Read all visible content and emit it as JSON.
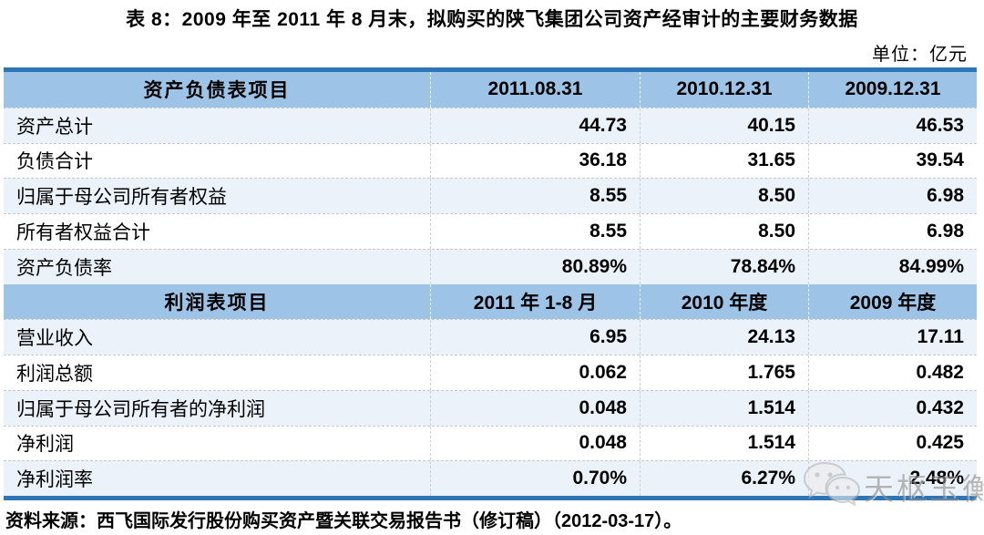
{
  "title": "表 8：2009 年至 2011 年 8 月末，拟购买的陕飞集团公司资产经审计的主要财务数据",
  "unit_label": "单位：亿元",
  "colors": {
    "header_bg": "#9DC3E6",
    "border_blue": "#2E75B6",
    "row_alt_bg": "#EBF2FA",
    "watermark_gray": "#8d8d8d"
  },
  "table": {
    "sections": [
      {
        "header": {
          "label": "资产负债表项目",
          "cols": [
            "2011.08.31",
            "2010.12.31",
            "2009.12.31"
          ]
        },
        "rows": [
          {
            "label": "资产总计",
            "values": [
              "44.73",
              "40.15",
              "46.53"
            ]
          },
          {
            "label": "负债合计",
            "values": [
              "36.18",
              "31.65",
              "39.54"
            ]
          },
          {
            "label": "归属于母公司所有者权益",
            "values": [
              "8.55",
              "8.50",
              "6.98"
            ]
          },
          {
            "label": "所有者权益合计",
            "values": [
              "8.55",
              "8.50",
              "6.98"
            ]
          },
          {
            "label": "资产负债率",
            "values": [
              "80.89%",
              "78.84%",
              "84.99%"
            ]
          }
        ]
      },
      {
        "header": {
          "label": "利润表项目",
          "cols": [
            "2011 年 1-8 月",
            "2010 年度",
            "2009 年度"
          ]
        },
        "rows": [
          {
            "label": "营业收入",
            "values": [
              "6.95",
              "24.13",
              "17.11"
            ]
          },
          {
            "label": "利润总额",
            "values": [
              "0.062",
              "1.765",
              "0.482"
            ]
          },
          {
            "label": "归属于母公司所有者的净利润",
            "values": [
              "0.048",
              "1.514",
              "0.432"
            ]
          },
          {
            "label": "净利润",
            "values": [
              "0.048",
              "1.514",
              "0.425"
            ]
          },
          {
            "label": "净利润率",
            "values": [
              "0.70%",
              "6.27%",
              "2.48%"
            ]
          }
        ]
      }
    ]
  },
  "source": "资料来源：西飞国际发行股份购买资产暨关联交易报告书（修订稿）（2012-03-17）。",
  "watermark": {
    "icon": "wechat-icon",
    "text": "天枢玉衡"
  }
}
